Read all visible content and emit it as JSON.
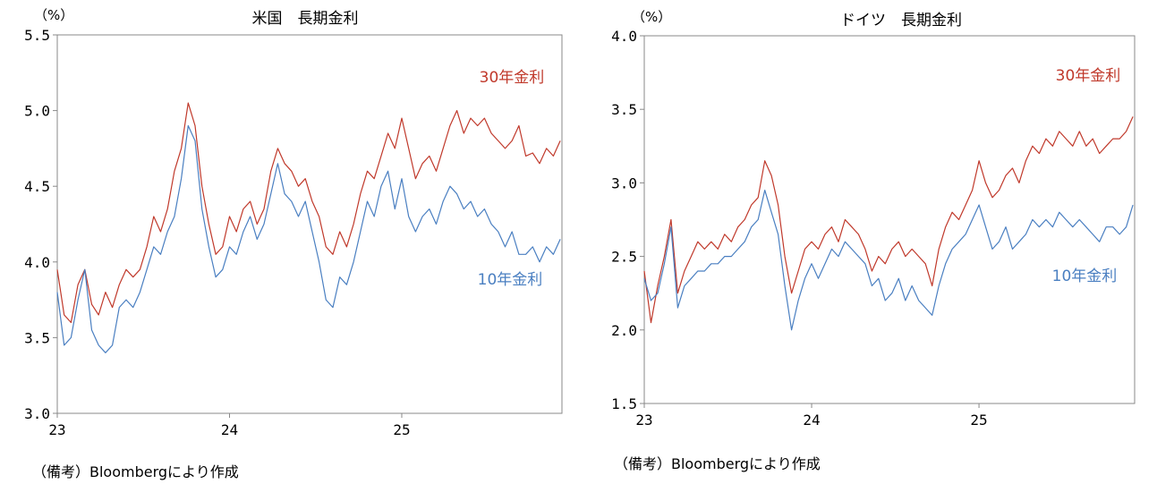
{
  "chart_data": [
    {
      "type": "line",
      "title": "米国　長期金利",
      "unit_label": "（%）",
      "ylim": [
        3.0,
        5.5
      ],
      "yticks": [
        "3.0",
        "3.5",
        "4.0",
        "4.5",
        "5.0",
        "5.5"
      ],
      "xticks": [
        "23",
        "24",
        "25"
      ],
      "xlim": [
        2023.0,
        2025.93
      ],
      "series": [
        {
          "name": "30年金利",
          "color": "#c0392b",
          "x": [
            2023.0,
            2023.04,
            2023.08,
            2023.12,
            2023.16,
            2023.2,
            2023.24,
            2023.28,
            2023.32,
            2023.36,
            2023.4,
            2023.44,
            2023.48,
            2023.52,
            2023.56,
            2023.6,
            2023.64,
            2023.68,
            2023.72,
            2023.76,
            2023.8,
            2023.84,
            2023.88,
            2023.92,
            2023.96,
            2024.0,
            2024.04,
            2024.08,
            2024.12,
            2024.16,
            2024.2,
            2024.24,
            2024.28,
            2024.32,
            2024.36,
            2024.4,
            2024.44,
            2024.48,
            2024.52,
            2024.56,
            2024.6,
            2024.64,
            2024.68,
            2024.72,
            2024.76,
            2024.8,
            2024.84,
            2024.88,
            2024.92,
            2024.96,
            2025.0,
            2025.04,
            2025.08,
            2025.12,
            2025.16,
            2025.2,
            2025.24,
            2025.28,
            2025.32,
            2025.36,
            2025.4,
            2025.44,
            2025.48,
            2025.52,
            2025.56,
            2025.6,
            2025.64,
            2025.68,
            2025.72,
            2025.76,
            2025.8,
            2025.84,
            2025.88,
            2025.92
          ],
          "y": [
            3.95,
            3.65,
            3.6,
            3.85,
            3.95,
            3.72,
            3.65,
            3.8,
            3.7,
            3.85,
            3.95,
            3.9,
            3.95,
            4.1,
            4.3,
            4.2,
            4.35,
            4.6,
            4.75,
            5.05,
            4.9,
            4.5,
            4.25,
            4.05,
            4.1,
            4.3,
            4.2,
            4.35,
            4.4,
            4.25,
            4.35,
            4.6,
            4.75,
            4.65,
            4.6,
            4.5,
            4.55,
            4.4,
            4.3,
            4.1,
            4.05,
            4.2,
            4.1,
            4.25,
            4.45,
            4.6,
            4.55,
            4.7,
            4.85,
            4.75,
            4.95,
            4.75,
            4.55,
            4.65,
            4.7,
            4.6,
            4.75,
            4.9,
            5.0,
            4.85,
            4.95,
            4.9,
            4.95,
            4.85,
            4.8,
            4.75,
            4.8,
            4.9,
            4.7,
            4.72,
            4.65,
            4.75,
            4.7,
            4.8
          ]
        },
        {
          "name": "10年金利",
          "color": "#4a7fc1",
          "x": [
            2023.0,
            2023.04,
            2023.08,
            2023.12,
            2023.16,
            2023.2,
            2023.24,
            2023.28,
            2023.32,
            2023.36,
            2023.4,
            2023.44,
            2023.48,
            2023.52,
            2023.56,
            2023.6,
            2023.64,
            2023.68,
            2023.72,
            2023.76,
            2023.8,
            2023.84,
            2023.88,
            2023.92,
            2023.96,
            2024.0,
            2024.04,
            2024.08,
            2024.12,
            2024.16,
            2024.2,
            2024.24,
            2024.28,
            2024.32,
            2024.36,
            2024.4,
            2024.44,
            2024.48,
            2024.52,
            2024.56,
            2024.6,
            2024.64,
            2024.68,
            2024.72,
            2024.76,
            2024.8,
            2024.84,
            2024.88,
            2024.92,
            2024.96,
            2025.0,
            2025.04,
            2025.08,
            2025.12,
            2025.16,
            2025.2,
            2025.24,
            2025.28,
            2025.32,
            2025.36,
            2025.4,
            2025.44,
            2025.48,
            2025.52,
            2025.56,
            2025.6,
            2025.64,
            2025.68,
            2025.72,
            2025.76,
            2025.8,
            2025.84,
            2025.88,
            2025.92
          ],
          "y": [
            3.8,
            3.45,
            3.5,
            3.75,
            3.95,
            3.55,
            3.45,
            3.4,
            3.45,
            3.7,
            3.75,
            3.7,
            3.8,
            3.95,
            4.1,
            4.05,
            4.2,
            4.3,
            4.55,
            4.9,
            4.8,
            4.35,
            4.1,
            3.9,
            3.95,
            4.1,
            4.05,
            4.2,
            4.3,
            4.15,
            4.25,
            4.45,
            4.65,
            4.45,
            4.4,
            4.3,
            4.4,
            4.2,
            4.0,
            3.75,
            3.7,
            3.9,
            3.85,
            4.0,
            4.2,
            4.4,
            4.3,
            4.5,
            4.6,
            4.35,
            4.55,
            4.3,
            4.2,
            4.3,
            4.35,
            4.25,
            4.4,
            4.5,
            4.45,
            4.35,
            4.4,
            4.3,
            4.35,
            4.25,
            4.2,
            4.1,
            4.2,
            4.05,
            4.05,
            4.1,
            4.0,
            4.1,
            4.05,
            4.15
          ]
        }
      ]
    },
    {
      "type": "line",
      "title": "ドイツ　長期金利",
      "unit_label": "（%）",
      "ylim": [
        1.5,
        4.0
      ],
      "yticks": [
        "1.5",
        "2.0",
        "2.5",
        "3.0",
        "3.5",
        "4.0"
      ],
      "xticks": [
        "23",
        "24",
        "25"
      ],
      "xlim": [
        2023.0,
        2025.93
      ],
      "series": [
        {
          "name": "30年金利",
          "color": "#c0392b",
          "x": [
            2023.0,
            2023.04,
            2023.08,
            2023.12,
            2023.16,
            2023.2,
            2023.24,
            2023.28,
            2023.32,
            2023.36,
            2023.4,
            2023.44,
            2023.48,
            2023.52,
            2023.56,
            2023.6,
            2023.64,
            2023.68,
            2023.72,
            2023.76,
            2023.8,
            2023.84,
            2023.88,
            2023.92,
            2023.96,
            2024.0,
            2024.04,
            2024.08,
            2024.12,
            2024.16,
            2024.2,
            2024.24,
            2024.28,
            2024.32,
            2024.36,
            2024.4,
            2024.44,
            2024.48,
            2024.52,
            2024.56,
            2024.6,
            2024.64,
            2024.68,
            2024.72,
            2024.76,
            2024.8,
            2024.84,
            2024.88,
            2024.92,
            2024.96,
            2025.0,
            2025.04,
            2025.08,
            2025.12,
            2025.16,
            2025.2,
            2025.24,
            2025.28,
            2025.32,
            2025.36,
            2025.4,
            2025.44,
            2025.48,
            2025.52,
            2025.56,
            2025.6,
            2025.64,
            2025.68,
            2025.72,
            2025.76,
            2025.8,
            2025.84,
            2025.88,
            2025.92
          ],
          "y": [
            2.4,
            2.05,
            2.3,
            2.5,
            2.75,
            2.25,
            2.4,
            2.5,
            2.6,
            2.55,
            2.6,
            2.55,
            2.65,
            2.6,
            2.7,
            2.75,
            2.85,
            2.9,
            3.15,
            3.05,
            2.85,
            2.5,
            2.25,
            2.4,
            2.55,
            2.6,
            2.55,
            2.65,
            2.7,
            2.6,
            2.75,
            2.7,
            2.65,
            2.55,
            2.4,
            2.5,
            2.45,
            2.55,
            2.6,
            2.5,
            2.55,
            2.5,
            2.45,
            2.3,
            2.55,
            2.7,
            2.8,
            2.75,
            2.85,
            2.95,
            3.15,
            3.0,
            2.9,
            2.95,
            3.05,
            3.1,
            3.0,
            3.15,
            3.25,
            3.2,
            3.3,
            3.25,
            3.35,
            3.3,
            3.25,
            3.35,
            3.25,
            3.3,
            3.2,
            3.25,
            3.3,
            3.3,
            3.35,
            3.45
          ]
        },
        {
          "name": "10年金利",
          "color": "#4a7fc1",
          "x": [
            2023.0,
            2023.04,
            2023.08,
            2023.12,
            2023.16,
            2023.2,
            2023.24,
            2023.28,
            2023.32,
            2023.36,
            2023.4,
            2023.44,
            2023.48,
            2023.52,
            2023.56,
            2023.6,
            2023.64,
            2023.68,
            2023.72,
            2023.76,
            2023.8,
            2023.84,
            2023.88,
            2023.92,
            2023.96,
            2024.0,
            2024.04,
            2024.08,
            2024.12,
            2024.16,
            2024.2,
            2024.24,
            2024.28,
            2024.32,
            2024.36,
            2024.4,
            2024.44,
            2024.48,
            2024.52,
            2024.56,
            2024.6,
            2024.64,
            2024.68,
            2024.72,
            2024.76,
            2024.8,
            2024.84,
            2024.88,
            2024.92,
            2024.96,
            2025.0,
            2025.04,
            2025.08,
            2025.12,
            2025.16,
            2025.2,
            2025.24,
            2025.28,
            2025.32,
            2025.36,
            2025.4,
            2025.44,
            2025.48,
            2025.52,
            2025.56,
            2025.6,
            2025.64,
            2025.68,
            2025.72,
            2025.76,
            2025.8,
            2025.84,
            2025.88,
            2025.92
          ],
          "y": [
            2.35,
            2.2,
            2.25,
            2.45,
            2.7,
            2.15,
            2.3,
            2.35,
            2.4,
            2.4,
            2.45,
            2.45,
            2.5,
            2.5,
            2.55,
            2.6,
            2.7,
            2.75,
            2.95,
            2.8,
            2.65,
            2.3,
            2.0,
            2.2,
            2.35,
            2.45,
            2.35,
            2.45,
            2.55,
            2.5,
            2.6,
            2.55,
            2.5,
            2.45,
            2.3,
            2.35,
            2.2,
            2.25,
            2.35,
            2.2,
            2.3,
            2.2,
            2.15,
            2.1,
            2.3,
            2.45,
            2.55,
            2.6,
            2.65,
            2.75,
            2.85,
            2.7,
            2.55,
            2.6,
            2.7,
            2.55,
            2.6,
            2.65,
            2.75,
            2.7,
            2.75,
            2.7,
            2.8,
            2.75,
            2.7,
            2.75,
            2.7,
            2.65,
            2.6,
            2.7,
            2.7,
            2.65,
            2.7,
            2.85
          ]
        }
      ]
    }
  ],
  "notes": [
    "（備考）Bloombergにより作成",
    "（備考）Bloombergにより作成"
  ]
}
